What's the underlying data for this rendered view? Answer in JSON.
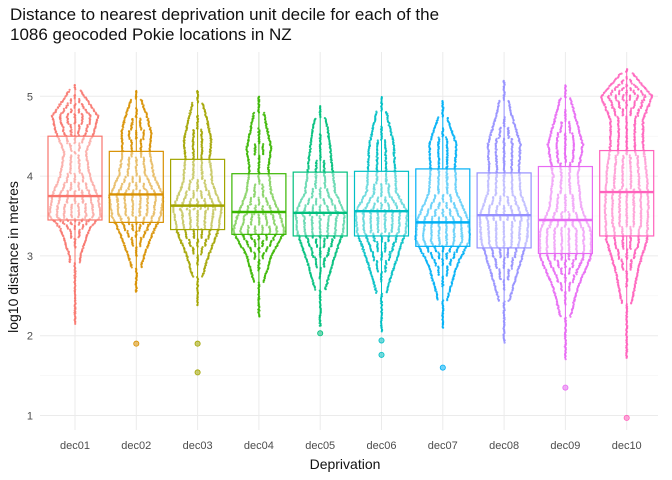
{
  "chart_data": {
    "type": "box",
    "title_lines": [
      "Distance to nearest deprivation unit decile for each of the",
      "1086 geocoded Pokie locations in NZ"
    ],
    "xlabel": "Deprivation",
    "ylabel": "log10 distance in metres",
    "ylim": [
      0.8,
      5.5
    ],
    "y_ticks": [
      1,
      2,
      3,
      4,
      5
    ],
    "grid": true,
    "overlay": "beeswarm points",
    "categories": [
      "dec01",
      "dec02",
      "dec03",
      "dec04",
      "dec05",
      "dec06",
      "dec07",
      "dec08",
      "dec09",
      "dec10"
    ],
    "colors": [
      "#F8766D",
      "#D89000",
      "#A3A500",
      "#39B600",
      "#00BF7D",
      "#00BFC4",
      "#00B0F6",
      "#9590FF",
      "#E76BF3",
      "#FF62BC"
    ],
    "boxes": [
      {
        "q1": 3.45,
        "median": 3.75,
        "q3": 4.5,
        "min": 2.15,
        "max": 5.15,
        "outliers": []
      },
      {
        "q1": 3.42,
        "median": 3.77,
        "q3": 4.31,
        "min": 2.55,
        "max": 5.08,
        "outliers": [
          1.9
        ]
      },
      {
        "q1": 3.33,
        "median": 3.63,
        "q3": 4.21,
        "min": 2.38,
        "max": 5.08,
        "outliers": [
          1.9,
          1.54
        ]
      },
      {
        "q1": 3.27,
        "median": 3.55,
        "q3": 4.03,
        "min": 2.24,
        "max": 5.0,
        "outliers": []
      },
      {
        "q1": 3.25,
        "median": 3.54,
        "q3": 4.05,
        "min": 2.12,
        "max": 4.88,
        "outliers": [
          2.03
        ]
      },
      {
        "q1": 3.25,
        "median": 3.56,
        "q3": 4.06,
        "min": 2.05,
        "max": 5.0,
        "outliers": [
          1.94,
          1.76
        ]
      },
      {
        "q1": 3.12,
        "median": 3.42,
        "q3": 4.09,
        "min": 2.1,
        "max": 4.95,
        "outliers": [
          1.6
        ]
      },
      {
        "q1": 3.1,
        "median": 3.51,
        "q3": 4.04,
        "min": 1.92,
        "max": 5.2,
        "outliers": []
      },
      {
        "q1": 3.03,
        "median": 3.45,
        "q3": 4.12,
        "min": 1.71,
        "max": 5.15,
        "outliers": [
          1.35
        ]
      },
      {
        "q1": 3.25,
        "median": 3.8,
        "q3": 4.32,
        "min": 1.72,
        "max": 5.35,
        "outliers": [
          0.97
        ]
      }
    ],
    "swarm_profiles": [
      [
        [
          2.15,
          0.04
        ],
        [
          2.6,
          0.1
        ],
        [
          3.0,
          0.2
        ],
        [
          3.35,
          0.55
        ],
        [
          3.5,
          0.95
        ],
        [
          3.75,
          0.85
        ],
        [
          4.0,
          0.55
        ],
        [
          4.3,
          0.4
        ],
        [
          4.55,
          0.7
        ],
        [
          4.75,
          0.85
        ],
        [
          5.0,
          0.35
        ],
        [
          5.15,
          0.05
        ]
      ],
      [
        [
          2.55,
          0.04
        ],
        [
          2.9,
          0.2
        ],
        [
          3.2,
          0.5
        ],
        [
          3.5,
          0.9
        ],
        [
          3.75,
          1.0
        ],
        [
          4.0,
          0.65
        ],
        [
          4.3,
          0.5
        ],
        [
          4.55,
          0.55
        ],
        [
          4.75,
          0.4
        ],
        [
          5.08,
          0.05
        ]
      ],
      [
        [
          2.38,
          0.04
        ],
        [
          2.7,
          0.15
        ],
        [
          3.0,
          0.4
        ],
        [
          3.3,
          0.75
        ],
        [
          3.6,
          0.9
        ],
        [
          3.9,
          0.55
        ],
        [
          4.2,
          0.45
        ],
        [
          4.45,
          0.5
        ],
        [
          4.7,
          0.35
        ],
        [
          5.08,
          0.05
        ]
      ],
      [
        [
          2.24,
          0.04
        ],
        [
          2.6,
          0.12
        ],
        [
          3.0,
          0.45
        ],
        [
          3.3,
          0.95
        ],
        [
          3.5,
          0.8
        ],
        [
          3.8,
          0.45
        ],
        [
          4.1,
          0.35
        ],
        [
          4.35,
          0.45
        ],
        [
          4.6,
          0.3
        ],
        [
          5.0,
          0.05
        ]
      ],
      [
        [
          2.12,
          0.04
        ],
        [
          2.5,
          0.12
        ],
        [
          2.9,
          0.45
        ],
        [
          3.3,
          0.85
        ],
        [
          3.55,
          0.9
        ],
        [
          3.8,
          0.55
        ],
        [
          4.1,
          0.45
        ],
        [
          4.4,
          0.35
        ],
        [
          4.65,
          0.25
        ],
        [
          4.88,
          0.05
        ]
      ],
      [
        [
          2.05,
          0.04
        ],
        [
          2.5,
          0.15
        ],
        [
          2.9,
          0.5
        ],
        [
          3.3,
          0.9
        ],
        [
          3.55,
          0.95
        ],
        [
          3.8,
          0.55
        ],
        [
          4.1,
          0.5
        ],
        [
          4.4,
          0.45
        ],
        [
          4.7,
          0.25
        ],
        [
          5.0,
          0.05
        ]
      ],
      [
        [
          2.1,
          0.04
        ],
        [
          2.5,
          0.2
        ],
        [
          2.9,
          0.55
        ],
        [
          3.2,
          1.0
        ],
        [
          3.45,
          0.95
        ],
        [
          3.8,
          0.5
        ],
        [
          4.1,
          0.45
        ],
        [
          4.4,
          0.5
        ],
        [
          4.7,
          0.2
        ],
        [
          4.95,
          0.05
        ]
      ],
      [
        [
          1.92,
          0.04
        ],
        [
          2.4,
          0.15
        ],
        [
          2.8,
          0.5
        ],
        [
          3.2,
          0.85
        ],
        [
          3.5,
          0.9
        ],
        [
          3.8,
          0.6
        ],
        [
          4.1,
          0.55
        ],
        [
          4.4,
          0.6
        ],
        [
          4.8,
          0.25
        ],
        [
          5.2,
          0.05
        ]
      ],
      [
        [
          1.71,
          0.04
        ],
        [
          2.2,
          0.15
        ],
        [
          2.6,
          0.45
        ],
        [
          3.0,
          0.95
        ],
        [
          3.3,
          0.95
        ],
        [
          3.6,
          0.6
        ],
        [
          4.0,
          0.45
        ],
        [
          4.4,
          0.65
        ],
        [
          4.7,
          0.4
        ],
        [
          5.15,
          0.05
        ]
      ],
      [
        [
          1.72,
          0.04
        ],
        [
          2.3,
          0.12
        ],
        [
          2.8,
          0.4
        ],
        [
          3.2,
          0.75
        ],
        [
          3.6,
          0.8
        ],
        [
          4.0,
          0.75
        ],
        [
          4.4,
          0.6
        ],
        [
          4.7,
          0.6
        ],
        [
          5.0,
          0.95
        ],
        [
          5.35,
          0.05
        ]
      ]
    ]
  }
}
